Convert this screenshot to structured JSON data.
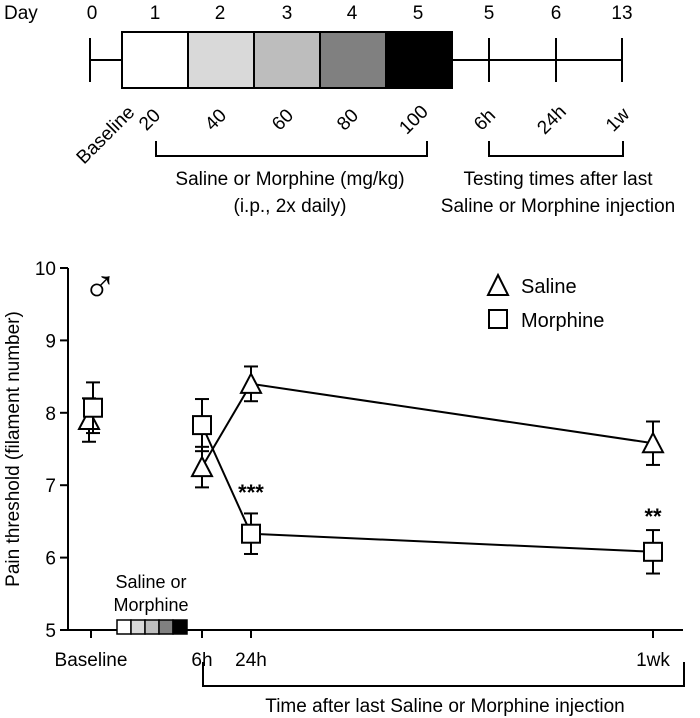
{
  "timeline": {
    "day_label": "Day",
    "day_numbers": [
      "0",
      "1",
      "2",
      "3",
      "4",
      "5",
      "5",
      "6",
      "13"
    ],
    "dose_boxes": [
      {
        "color": "#ffffff"
      },
      {
        "color": "#d9d9d9"
      },
      {
        "color": "#bdbdbd"
      },
      {
        "color": "#808080"
      },
      {
        "color": "#000000"
      }
    ],
    "baseline_label": "Baseline",
    "dose_labels": [
      "20",
      "40",
      "60",
      "80",
      "100"
    ],
    "time_labels": [
      "6h",
      "24h",
      "1w"
    ],
    "treatment_caption": [
      "Saline or Morphine (mg/kg)",
      "(i.p., 2x daily)"
    ],
    "testing_caption": [
      "Testing times after last",
      "Saline or Morphine injection"
    ]
  },
  "figure": {
    "male_symbol": "♂",
    "inset_label": [
      "Saline or",
      "Morphine"
    ],
    "bracket_caption": "Time after last Saline or Morphine injection"
  },
  "chart_data": {
    "type": "line",
    "ylabel": "Pain threshold (filament number)",
    "ylim": [
      5,
      10
    ],
    "yticks": [
      "5",
      "6",
      "7",
      "8",
      "9",
      "10"
    ],
    "xticks": [
      "Baseline",
      "6h",
      "24h",
      "1wk"
    ],
    "legend_position": "top-right",
    "series": [
      {
        "name": "Saline",
        "marker": "triangle",
        "points": [
          {
            "x": "Baseline",
            "y": 7.9,
            "err": 0.3,
            "connected": false
          },
          {
            "x": "6h",
            "y": 7.25,
            "err": 0.28,
            "connected": true
          },
          {
            "x": "24h",
            "y": 8.4,
            "err": 0.24,
            "connected": true
          },
          {
            "x": "1wk",
            "y": 7.58,
            "err": 0.3,
            "connected": true
          }
        ]
      },
      {
        "name": "Morphine",
        "marker": "square",
        "points": [
          {
            "x": "Baseline",
            "y": 8.07,
            "err": 0.35,
            "connected": false
          },
          {
            "x": "6h",
            "y": 7.83,
            "err": 0.36,
            "connected": true
          },
          {
            "x": "24h",
            "y": 6.33,
            "err": 0.28,
            "connected": true
          },
          {
            "x": "1wk",
            "y": 6.08,
            "err": 0.3,
            "connected": true
          }
        ]
      }
    ],
    "annotations": [
      {
        "x": "24h",
        "text": "***"
      },
      {
        "x": "1wk",
        "text": "**"
      }
    ]
  }
}
